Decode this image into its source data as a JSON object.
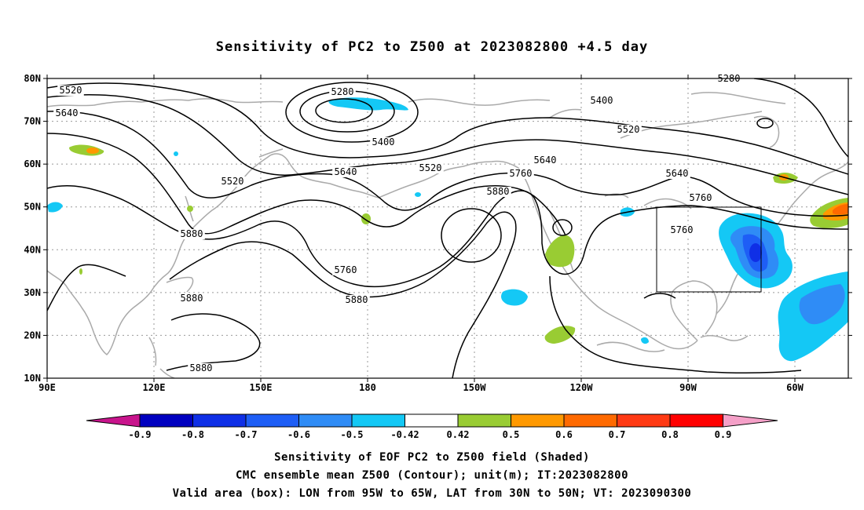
{
  "title": "Sensitivity of PC2 to Z500 at 2023082800 +4.5 day",
  "map": {
    "lat_labels": [
      "80N",
      "70N",
      "60N",
      "50N",
      "40N",
      "30N",
      "20N",
      "10N"
    ],
    "lon_labels": [
      "90E",
      "120E",
      "150E",
      "180",
      "150W",
      "120W",
      "90W",
      "60W"
    ],
    "contour_labels": [
      "5280",
      "5520",
      "5640",
      "5400",
      "5280",
      "5400",
      "5520",
      "5520",
      "5520",
      "5640",
      "5760",
      "5880",
      "5640",
      "5640",
      "5760",
      "5880",
      "5760",
      "5760",
      "5880",
      "5880",
      "5880"
    ],
    "valid_box": {
      "lon_range": [
        "95W",
        "65W"
      ],
      "lat_range": [
        "30N",
        "50N"
      ]
    },
    "colors": {
      "coast": "#aaaaaa",
      "contour": "#000000",
      "grid": "#999999"
    }
  },
  "colorbar": {
    "labels": [
      "-0.9",
      "-0.8",
      "-0.7",
      "-0.6",
      "-0.5",
      "-0.42",
      "0.42",
      "0.5",
      "0.6",
      "0.7",
      "0.8",
      "0.9"
    ],
    "colors": [
      "#0000c0",
      "#0f2fe6",
      "#1e5ef6",
      "#2f8cf6",
      "#14c8f5",
      "#ffffff",
      "#99cc33",
      "#ff9900",
      "#ff6a00",
      "#ff3a14",
      "#ff0000"
    ],
    "low_end_color": "#c8148c",
    "high_end_color": "#f5a0c8"
  },
  "captions": [
    "Sensitivity of EOF PC2 to Z500 field (Shaded)",
    "CMC ensemble mean Z500 (Contour); unit(m); IT:2023082800",
    "Valid area (box): LON from 95W to 65W, LAT from 30N to 50N; VT: 2023090300"
  ]
}
